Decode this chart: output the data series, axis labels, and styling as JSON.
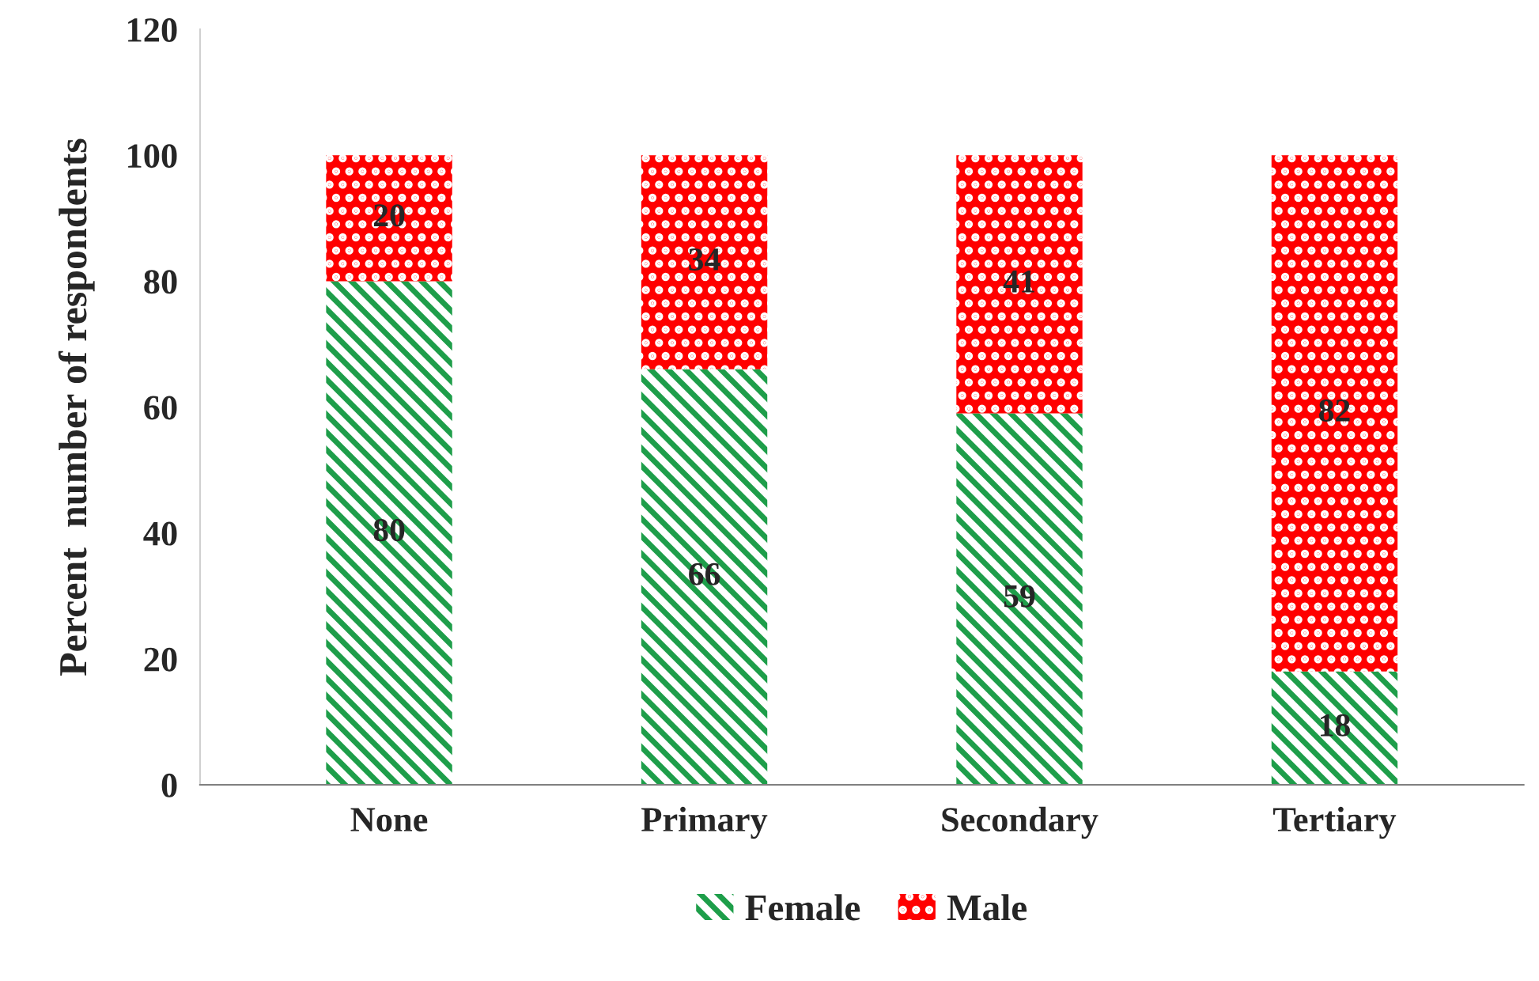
{
  "chart_data": {
    "type": "bar",
    "stacked": true,
    "ylabel": "Percent  number of respondents",
    "categories": [
      "None",
      "Primary",
      "Secondary",
      "Tertiary"
    ],
    "series": [
      {
        "name": "Female",
        "color": "#1e9e4a",
        "values": [
          80,
          66,
          59,
          18
        ]
      },
      {
        "name": "Male",
        "color": "#ff0000",
        "values": [
          20,
          34,
          41,
          82
        ]
      }
    ],
    "ylim": [
      0,
      120
    ],
    "yticks": [
      0,
      20,
      40,
      60,
      80,
      100,
      120
    ],
    "grid": false,
    "legend": "bottom",
    "data_labels": true
  }
}
